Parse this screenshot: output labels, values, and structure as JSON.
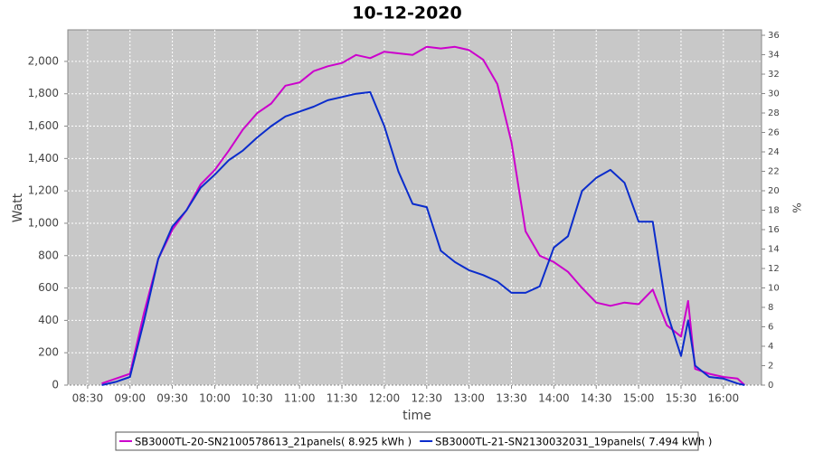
{
  "chart_data": {
    "type": "line",
    "title": "10-12-2020",
    "x_label": "time",
    "y_label": "Watt",
    "y2_label": "%",
    "x": [
      "08:40",
      "08:50",
      "09:00",
      "09:10",
      "09:20",
      "09:30",
      "09:40",
      "09:50",
      "10:00",
      "10:10",
      "10:20",
      "10:30",
      "10:40",
      "10:50",
      "11:00",
      "11:10",
      "11:20",
      "11:30",
      "11:40",
      "11:50",
      "12:00",
      "12:10",
      "12:20",
      "12:30",
      "12:40",
      "12:50",
      "13:00",
      "13:10",
      "13:20",
      "13:30",
      "13:40",
      "13:50",
      "14:00",
      "14:10",
      "14:20",
      "14:30",
      "14:40",
      "14:50",
      "15:00",
      "15:10",
      "15:20",
      "15:30",
      "15:35",
      "15:40",
      "15:50",
      "16:00",
      "16:10",
      "16:15"
    ],
    "series": [
      {
        "name": "SB3000TL-20-SN2100578613_21panels( 8.925 kWh )",
        "color": "#cc00cc",
        "values": [
          10,
          40,
          70,
          450,
          780,
          960,
          1080,
          1240,
          1330,
          1450,
          1580,
          1680,
          1740,
          1850,
          1870,
          1940,
          1970,
          1990,
          2040,
          2020,
          2060,
          2050,
          2040,
          2090,
          2080,
          2090,
          2070,
          2010,
          1860,
          1500,
          950,
          800,
          760,
          700,
          600,
          510,
          490,
          510,
          500,
          590,
          370,
          300,
          520,
          100,
          70,
          50,
          40,
          0
        ]
      },
      {
        "name": "SB3000TL-21-SN2130032031_19panels( 7.494 kWh )",
        "color": "#0a2ccc",
        "values": [
          0,
          20,
          50,
          400,
          780,
          980,
          1080,
          1220,
          1300,
          1390,
          1450,
          1530,
          1600,
          1660,
          1690,
          1720,
          1760,
          1780,
          1800,
          1810,
          1600,
          1320,
          1120,
          1100,
          830,
          760,
          710,
          680,
          640,
          570,
          570,
          610,
          850,
          920,
          1200,
          1280,
          1330,
          1250,
          1010,
          1010,
          450,
          180,
          400,
          120,
          50,
          40,
          10,
          0
        ]
      }
    ],
    "xlim": [
      "08:16",
      "16:27"
    ],
    "xticks": [
      "08:30",
      "09:00",
      "09:30",
      "10:00",
      "10:30",
      "11:00",
      "11:30",
      "12:00",
      "12:30",
      "13:00",
      "13:30",
      "14:00",
      "14:30",
      "15:00",
      "15:30",
      "16:00"
    ],
    "ylim": [
      0,
      2195
    ],
    "yticks": [
      0,
      200,
      400,
      600,
      800,
      {
        "value": 1000,
        "label": "1,000"
      },
      {
        "value": 1200,
        "label": "1,200"
      },
      {
        "value": 1400,
        "label": "1,400"
      },
      {
        "value": 1600,
        "label": "1,600"
      },
      {
        "value": 1800,
        "label": "1,800"
      },
      {
        "value": 2000,
        "label": "2,000"
      }
    ],
    "y2lim": [
      0,
      36.56
    ],
    "y2ticks": [
      0,
      2,
      4,
      6,
      8,
      10,
      12,
      14,
      16,
      18,
      20,
      22,
      24,
      26,
      28,
      30,
      32,
      34,
      36
    ],
    "grid": true,
    "legend": "bottom"
  }
}
